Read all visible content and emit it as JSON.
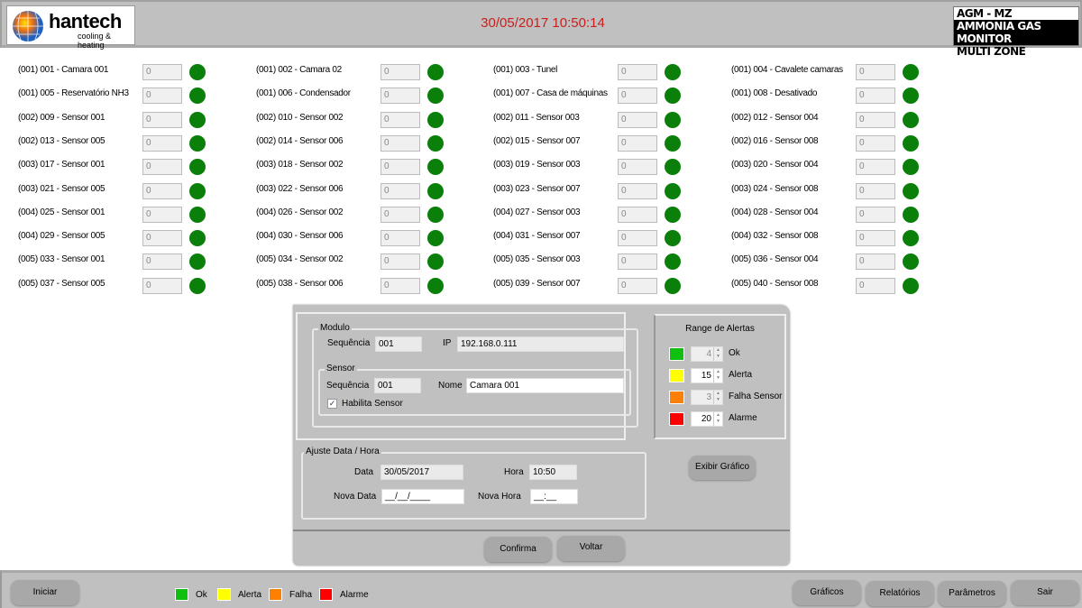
{
  "header": {
    "logo_brand": "hantech",
    "logo_sub": "cooling & heating",
    "clock": "30/05/2017 10:50:14",
    "product": [
      "AGM - MZ",
      "AMMONIA GAS MONITOR",
      "MULTI ZONE"
    ]
  },
  "sensors": {
    "value": "0",
    "status_color": "#0a7f0a",
    "columns": [
      [
        "(001) 001 - Camara 001",
        "(001) 005 - Reservatório NH3",
        "(002) 009 - Sensor 001",
        "(002) 013 - Sensor 005",
        "(003) 017 - Sensor 001",
        "(003) 021 - Sensor 005",
        "(004) 025 - Sensor 001",
        "(004) 029 - Sensor 005",
        "(005) 033 - Sensor 001",
        "(005) 037 - Sensor 005"
      ],
      [
        "(001) 002 - Camara 02",
        "(001) 006 - Condensador",
        "(002) 010 - Sensor 002",
        "(002) 014 - Sensor 006",
        "(003) 018 - Sensor 002",
        "(003) 022 - Sensor 006",
        "(004) 026 - Sensor 002",
        "(004) 030 - Sensor 006",
        "(005) 034 - Sensor 002",
        "(005) 038 - Sensor 006"
      ],
      [
        "(001) 003 - Tunel",
        "(001) 007 - Casa de máquinas",
        "(002) 011 - Sensor 003",
        "(002) 015 - Sensor 007",
        "(003) 019 - Sensor 003",
        "(003) 023 - Sensor 007",
        "(004) 027 - Sensor 003",
        "(004) 031 - Sensor 007",
        "(005) 035 - Sensor 003",
        "(005) 039 - Sensor 007"
      ],
      [
        "(001) 004 - Cavalete camaras",
        "(001) 008 - Desativado",
        "(002) 012 - Sensor 004",
        "(002) 016 - Sensor 008",
        "(003) 020 - Sensor 004",
        "(003) 024 - Sensor 008",
        "(004) 028 - Sensor 004",
        "(004) 032 - Sensor 008",
        "(005) 036 - Sensor 004",
        "(005) 040 - Sensor 008"
      ]
    ]
  },
  "dialog": {
    "modulo": {
      "title": "Modulo",
      "seq_label": "Sequência",
      "seq": "001",
      "ip_label": "IP",
      "ip": "192.168.0.111"
    },
    "sensor": {
      "title": "Sensor",
      "seq_label": "Sequência",
      "seq": "001",
      "name_label": "Nome",
      "name": "Camara 001",
      "enable_label": "Habilita Sensor",
      "enabled": true
    },
    "range": {
      "title": "Range de Alertas",
      "items": [
        {
          "label": "Ok",
          "value": "4",
          "color": "#10c010",
          "disabled": true
        },
        {
          "label": "Alerta",
          "value": "15",
          "color": "#ffff00",
          "disabled": false
        },
        {
          "label": "Falha Sensor",
          "value": "3",
          "color": "#ff8000",
          "disabled": true
        },
        {
          "label": "Alarme",
          "value": "20",
          "color": "#ff0000",
          "disabled": false
        }
      ]
    },
    "datetime": {
      "title": "Ajuste Data / Hora",
      "data_label": "Data",
      "data": "30/05/2017",
      "hora_label": "Hora",
      "hora": "10:50",
      "nova_data_label": "Nova Data",
      "nova_data": "__/__/____",
      "nova_hora_label": "Nova Hora",
      "nova_hora": "__:__"
    },
    "show_chart": "Exibir Gráfico",
    "confirm": "Confirma",
    "back": "Voltar"
  },
  "footer": {
    "start": "Iniciar",
    "legend": [
      {
        "label": "Ok",
        "color": "#10c010"
      },
      {
        "label": "Alerta",
        "color": "#ffff00"
      },
      {
        "label": "Falha",
        "color": "#ff8000"
      },
      {
        "label": "Alarme",
        "color": "#ff0000"
      }
    ],
    "buttons": [
      "Gráficos",
      "Relatórios",
      "Parâmetros",
      "Sair"
    ]
  }
}
